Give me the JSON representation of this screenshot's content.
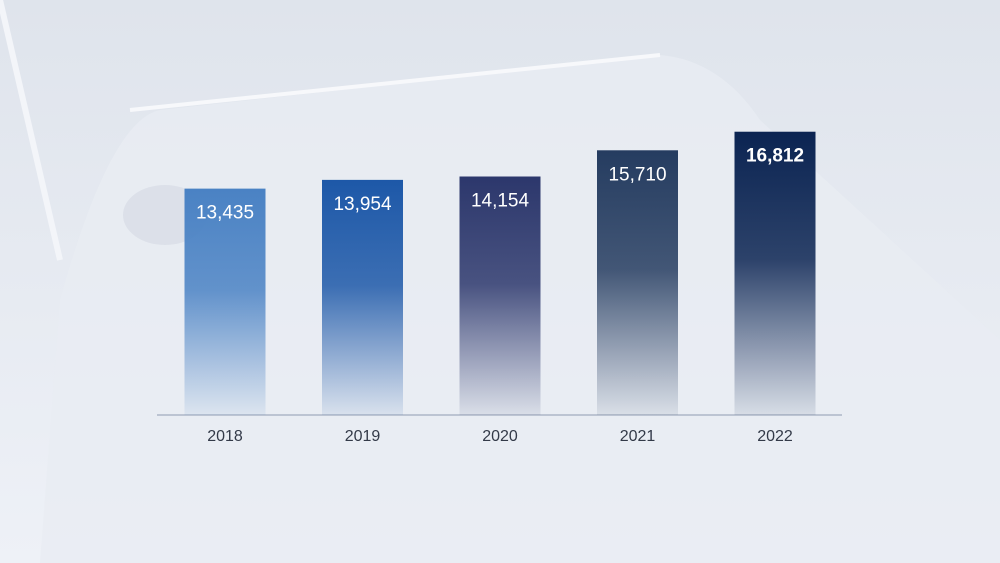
{
  "chart_data": {
    "type": "bar",
    "categories": [
      "2018",
      "2019",
      "2020",
      "2021",
      "2022"
    ],
    "values": [
      13435,
      13954,
      14154,
      15710,
      16812
    ],
    "value_labels": [
      "13,435",
      "13,954",
      "14,154",
      "15,710",
      "16,812"
    ],
    "colors": [
      "#4a82c4",
      "#1d58a8",
      "#2c376c",
      "#253c60",
      "#0b2452"
    ],
    "ylim": [
      0,
      20000
    ]
  }
}
